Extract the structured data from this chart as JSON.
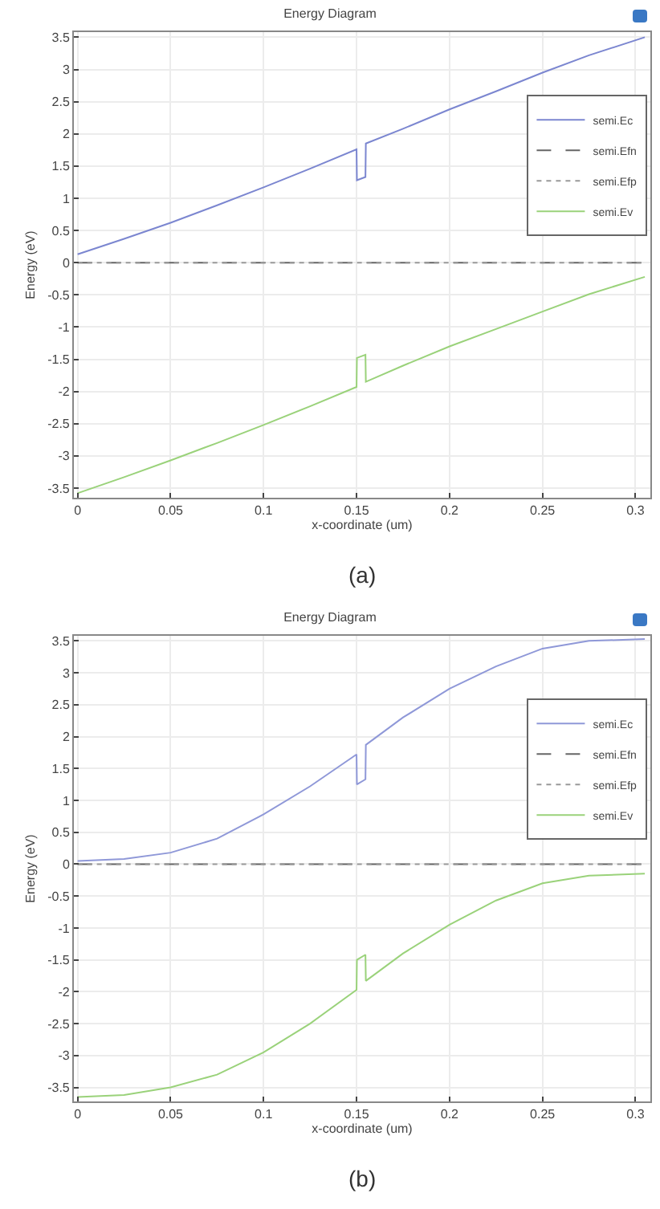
{
  "chart_data": [
    {
      "type": "line",
      "title": "Energy Diagram",
      "xlabel": "x-coordinate (um)",
      "ylabel": "Energy (eV)",
      "annotations": [
        "(a)"
      ],
      "xlim": [
        -0.002,
        0.308
      ],
      "ylim": [
        -3.65,
        3.58
      ],
      "xticks": [
        0,
        0.05,
        0.1,
        0.15,
        0.2,
        0.25,
        0.3
      ],
      "yticks": [
        -3.5,
        -3,
        -2.5,
        -2,
        -1.5,
        -1,
        -0.5,
        0,
        0.5,
        1,
        1.5,
        2,
        2.5,
        3,
        3.5
      ],
      "grid": true,
      "legend": "top right",
      "series": [
        {
          "name": "semi.Ec",
          "color": "#7b86d0",
          "line_style": "solid",
          "x": [
            0,
            0.025,
            0.05,
            0.075,
            0.1,
            0.125,
            0.15,
            0.1502,
            0.1548,
            0.155,
            0.175,
            0.2,
            0.225,
            0.25,
            0.275,
            0.305
          ],
          "values": [
            0.13,
            0.37,
            0.62,
            0.89,
            1.17,
            1.46,
            1.76,
            1.28,
            1.33,
            1.85,
            2.08,
            2.38,
            2.66,
            2.95,
            3.22,
            3.5
          ]
        },
        {
          "name": "semi.Efn",
          "color": "#666666",
          "line_style": "dashed",
          "x": [
            0,
            0.305
          ],
          "values": [
            0,
            0
          ]
        },
        {
          "name": "semi.Efp",
          "color": "#999999",
          "line_style": "dotted",
          "x": [
            0,
            0.305
          ],
          "values": [
            0,
            0
          ]
        },
        {
          "name": "semi.Ev",
          "color": "#9ad27a",
          "line_style": "solid",
          "x": [
            0,
            0.025,
            0.05,
            0.075,
            0.1,
            0.125,
            0.15,
            0.1502,
            0.1548,
            0.155,
            0.175,
            0.2,
            0.225,
            0.25,
            0.275,
            0.305
          ],
          "values": [
            -3.58,
            -3.33,
            -3.07,
            -2.8,
            -2.52,
            -2.23,
            -1.93,
            -1.48,
            -1.43,
            -1.85,
            -1.6,
            -1.3,
            -1.03,
            -0.76,
            -0.49,
            -0.22
          ]
        }
      ]
    },
    {
      "type": "line",
      "title": "Energy Diagram",
      "xlabel": "x-coordinate (um)",
      "ylabel": "Energy (eV)",
      "annotations": [
        "(b)"
      ],
      "xlim": [
        -0.002,
        0.308
      ],
      "ylim": [
        -3.72,
        3.58
      ],
      "xticks": [
        0,
        0.05,
        0.1,
        0.15,
        0.2,
        0.25,
        0.3
      ],
      "yticks": [
        -3.5,
        -3,
        -2.5,
        -2,
        -1.5,
        -1,
        -0.5,
        0,
        0.5,
        1,
        1.5,
        2,
        2.5,
        3,
        3.5
      ],
      "grid": true,
      "legend": "top right",
      "series": [
        {
          "name": "semi.Ec",
          "color": "#8f98d8",
          "line_style": "solid",
          "x": [
            0,
            0.025,
            0.05,
            0.075,
            0.1,
            0.125,
            0.15,
            0.1502,
            0.1548,
            0.155,
            0.175,
            0.2,
            0.225,
            0.25,
            0.275,
            0.305
          ],
          "values": [
            0.05,
            0.08,
            0.18,
            0.4,
            0.78,
            1.22,
            1.72,
            1.25,
            1.33,
            1.87,
            2.3,
            2.75,
            3.1,
            3.38,
            3.5,
            3.53
          ]
        },
        {
          "name": "semi.Efn",
          "color": "#666666",
          "line_style": "dashed",
          "x": [
            0,
            0.305
          ],
          "values": [
            0,
            0
          ]
        },
        {
          "name": "semi.Efp",
          "color": "#999999",
          "line_style": "dotted",
          "x": [
            0,
            0.305
          ],
          "values": [
            0,
            0
          ]
        },
        {
          "name": "semi.Ev",
          "color": "#9ad27a",
          "line_style": "solid",
          "x": [
            0,
            0.025,
            0.05,
            0.075,
            0.1,
            0.125,
            0.15,
            0.1502,
            0.1548,
            0.155,
            0.175,
            0.2,
            0.225,
            0.25,
            0.275,
            0.305
          ],
          "values": [
            -3.65,
            -3.62,
            -3.5,
            -3.3,
            -2.95,
            -2.5,
            -1.97,
            -1.5,
            -1.42,
            -1.83,
            -1.4,
            -0.95,
            -0.57,
            -0.3,
            -0.18,
            -0.15
          ]
        }
      ]
    }
  ]
}
